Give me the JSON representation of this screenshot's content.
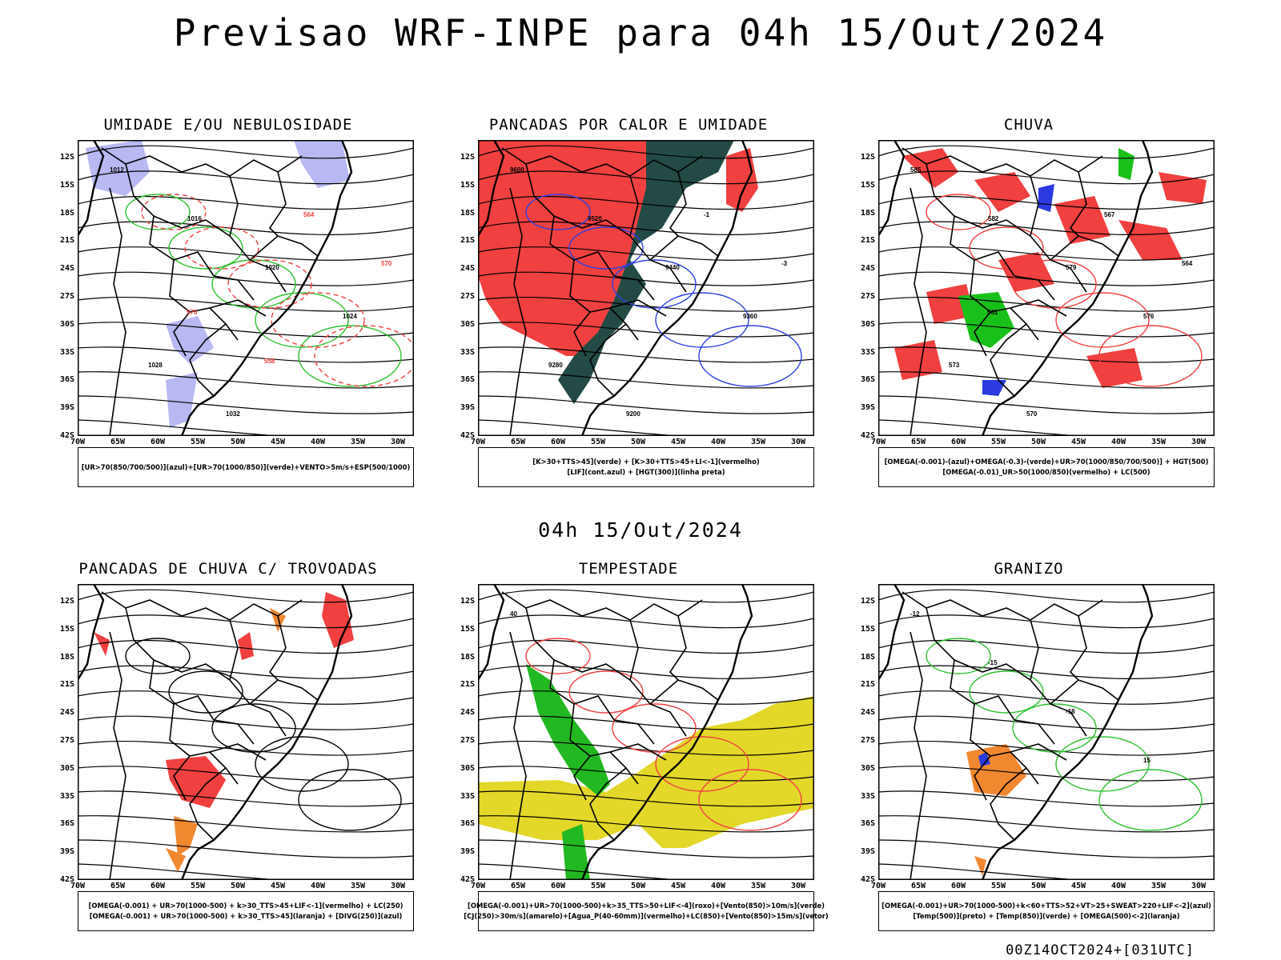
{
  "title": "Previsao WRF-INPE  para 04h 15/Out/2024",
  "mid_title": "04h 15/Out/2024",
  "footer": "00Z14OCT2024+[031UTC]",
  "lat_labels": [
    "12S",
    "15S",
    "18S",
    "21S",
    "24S",
    "27S",
    "30S",
    "33S",
    "36S",
    "39S",
    "42S"
  ],
  "lon_labels": [
    "70W",
    "65W",
    "60W",
    "55W",
    "50W",
    "45W",
    "40W",
    "35W",
    "30W"
  ],
  "panels": [
    {
      "title": "UMIDADE E/OU NEBULOSIDADE",
      "legend": [
        "[UR>70(850/700/500)](azul)+[UR>70(1000/850)](verde)+VENTO>5m/s+ESP(500/1000)"
      ],
      "labels": [
        "1012",
        "1016",
        "1020",
        "1024",
        "1028",
        "1032",
        "564",
        "570",
        "576",
        "558"
      ]
    },
    {
      "title": "PANCADAS POR CALOR E UMIDADE",
      "legend": [
        "[K>30+TTS>45](verde) + [K>30+TTS>45+LI<-1](vermelho)",
        "[LIF](cont.azul) + [HGT(300)](linha preta)"
      ],
      "labels": [
        "9600",
        "9520",
        "9440",
        "9360",
        "9280",
        "9200",
        "-1",
        "-3"
      ]
    },
    {
      "title": "CHUVA",
      "legend": [
        "[OMEGA(-0.001)-(azul)+OMEGA(-0.3)-(verde)+UR>70(1000/850/700/500)] + HGT(500)",
        "[OMEGA(-0.01)_UR>50(1000/850)(vermelho) + LC(500)"
      ],
      "labels": [
        "585",
        "582",
        "579",
        "576",
        "573",
        "570",
        "567",
        "564",
        "561"
      ]
    },
    {
      "title": "PANCADAS DE CHUVA C/ TROVOADAS",
      "legend": [
        "[OMEGA(-0.001) + UR>70(1000-500) + k>30_TTS>45+LIF<-1](vermelho) + LC(250)",
        "[OMEGA(-0.001) + UR>70(1000-500) + k>30_TTS>45](laranja) + [DIVG(250)](azul)"
      ],
      "labels": []
    },
    {
      "title": "TEMPESTADE",
      "legend": [
        "[OMEGA(-0.001)+UR>70(1000-500)+k>35_TTS>50+LIF<-4](roxo)+[Vento(850)>10m/s](verde)",
        "[CJ(250)>30m/s](amarelo)+[Agua_P(40-60mm)](vermelho)+LC(850)+[Vento(850)>15m/s](vetor)"
      ],
      "labels": [
        "40"
      ]
    },
    {
      "title": "GRANIZO",
      "legend": [
        "[OMEGA(-0.001)+UR>70(1000-500)+k<60+TTS>52+VT>25+SWEAT>220+LIF<-2](azul)",
        "[Temp(500)](preto) + [Temp(850)](verde) + [OMEGA(500)<-2](laranja)"
      ],
      "labels": [
        "-12",
        "-15",
        "-18",
        "15"
      ]
    }
  ]
}
